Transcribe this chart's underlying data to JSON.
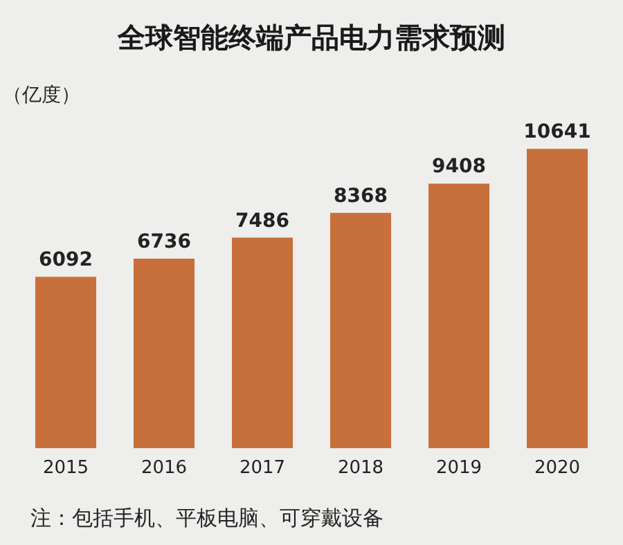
{
  "chart_data": {
    "type": "bar",
    "title": "全球智能终端产品电力需求预测",
    "ylabel": "（亿度）",
    "categories": [
      "2015",
      "2016",
      "2017",
      "2018",
      "2019",
      "2020"
    ],
    "values": [
      6092,
      6736,
      7486,
      8368,
      9408,
      10641
    ],
    "color": "#c8703c",
    "data_labels": true,
    "tick_labels": "x",
    "grid": false,
    "annotations": [
      "注：包括手机、平板电脑、可穿戴设备"
    ]
  }
}
